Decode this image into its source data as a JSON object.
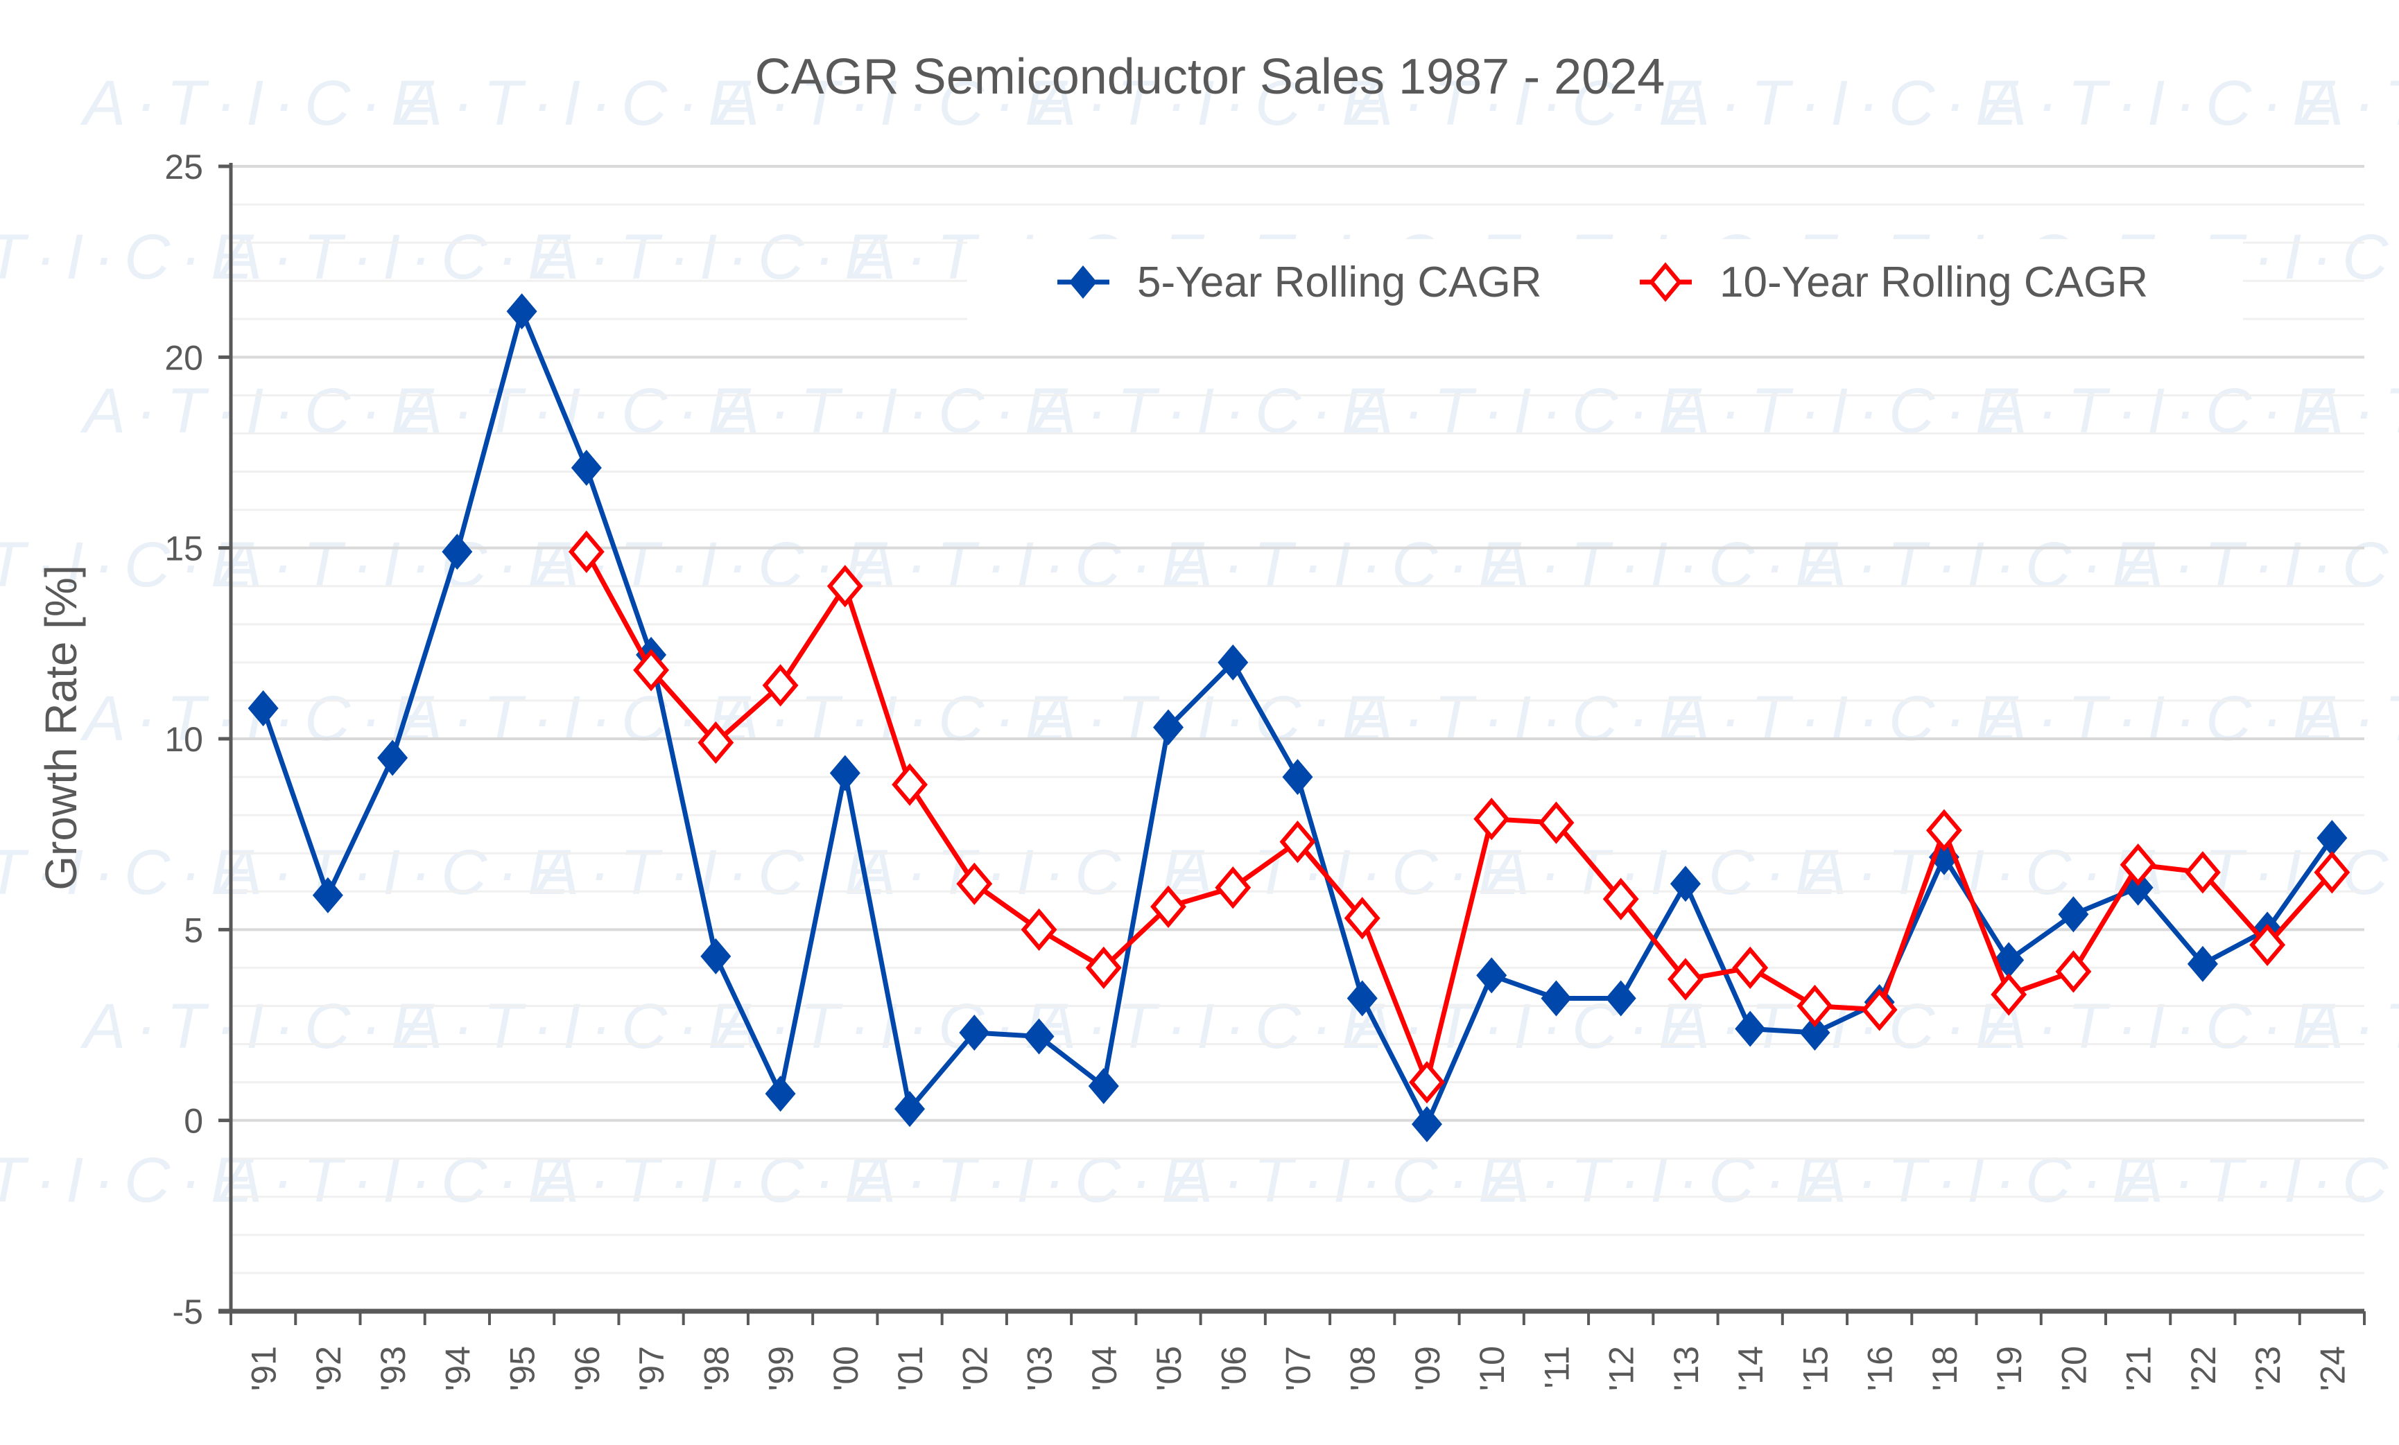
{
  "chart_data": {
    "type": "line",
    "title": "CAGR Semiconductor Sales 1987 - 2024",
    "xlabel": "",
    "ylabel": "Growth Rate [%]",
    "ylim": [
      -5,
      25
    ],
    "yticks": [
      -5,
      0,
      5,
      10,
      15,
      20,
      25
    ],
    "grid": true,
    "legend_position": "top-right",
    "watermark": "A·T·I·C·E",
    "categories": [
      "'91",
      "'92",
      "'93",
      "'94",
      "'95",
      "'96",
      "'97",
      "'98",
      "'99",
      "'00",
      "'01",
      "'02",
      "'03",
      "'04",
      "'05",
      "'06",
      "'07",
      "'08",
      "'09",
      "'10",
      "'11",
      "'12",
      "'13",
      "'14",
      "'15",
      "'16",
      "'18",
      "'19",
      "'20",
      "'21",
      "'22",
      "'23",
      "'24"
    ],
    "series": [
      {
        "name": "5-Year Rolling CAGR",
        "color": "#0047AB",
        "marker": "filled-diamond",
        "values": [
          10.8,
          5.9,
          9.5,
          14.9,
          21.2,
          17.1,
          12.2,
          4.3,
          0.7,
          9.1,
          0.3,
          2.3,
          2.2,
          0.9,
          10.3,
          12.0,
          9.0,
          3.2,
          -0.1,
          3.8,
          3.2,
          3.2,
          6.2,
          2.4,
          2.3,
          3.1,
          6.9,
          4.2,
          5.4,
          6.1,
          4.1,
          5.0,
          7.4
        ]
      },
      {
        "name": "10-Year Rolling CAGR",
        "color": "#FF0000",
        "marker": "hollow-diamond",
        "values": [
          null,
          null,
          null,
          null,
          null,
          14.9,
          11.8,
          9.9,
          11.4,
          14.0,
          8.8,
          6.2,
          5.0,
          4.0,
          5.6,
          6.1,
          7.3,
          5.3,
          1.0,
          7.9,
          7.8,
          5.8,
          3.7,
          4.0,
          3.0,
          2.9,
          7.6,
          3.3,
          3.9,
          6.7,
          6.5,
          4.6,
          6.5
        ]
      }
    ]
  }
}
